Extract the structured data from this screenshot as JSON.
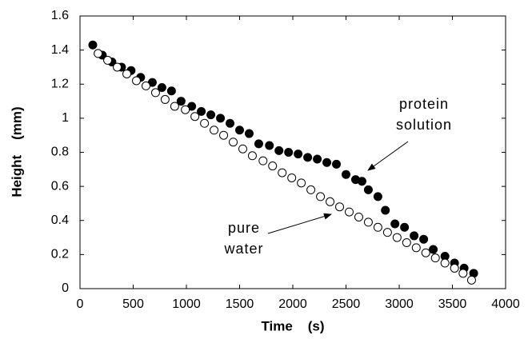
{
  "chart_data": {
    "type": "scatter",
    "xlabel": "Time    (s)",
    "ylabel": "Height    (mm)",
    "xlim": [
      0,
      4000
    ],
    "xticks": [
      0,
      500,
      1000,
      1500,
      2000,
      2500,
      3000,
      3500,
      4000
    ],
    "ylim": [
      0,
      1.6
    ],
    "yticks": [
      0,
      0.2,
      0.4,
      0.6,
      0.8,
      1,
      1.2,
      1.4,
      1.6
    ],
    "grid": false,
    "series": [
      {
        "name": "protein solution",
        "color": "#000000",
        "filled": true,
        "x": [
          120,
          210,
          300,
          390,
          480,
          570,
          680,
          770,
          860,
          950,
          1050,
          1140,
          1230,
          1320,
          1410,
          1500,
          1590,
          1680,
          1780,
          1870,
          1960,
          2050,
          2140,
          2230,
          2320,
          2410,
          2500,
          2590,
          2650,
          2710,
          2800,
          2870,
          2960,
          3050,
          3140,
          3230,
          3320,
          3430,
          3520,
          3610,
          3700
        ],
        "values": [
          1.43,
          1.37,
          1.33,
          1.3,
          1.28,
          1.24,
          1.21,
          1.18,
          1.16,
          1.1,
          1.07,
          1.04,
          1.02,
          1.0,
          0.97,
          0.93,
          0.91,
          0.85,
          0.84,
          0.81,
          0.8,
          0.79,
          0.77,
          0.76,
          0.74,
          0.73,
          0.67,
          0.64,
          0.63,
          0.58,
          0.54,
          0.46,
          0.38,
          0.36,
          0.31,
          0.29,
          0.23,
          0.19,
          0.15,
          0.12,
          0.09
        ]
      },
      {
        "name": "pure water",
        "color": "#000000",
        "filled": false,
        "x": [
          170,
          260,
          350,
          440,
          530,
          620,
          710,
          800,
          890,
          990,
          1080,
          1170,
          1260,
          1350,
          1440,
          1530,
          1620,
          1720,
          1810,
          1900,
          1990,
          2080,
          2170,
          2260,
          2350,
          2440,
          2530,
          2620,
          2710,
          2800,
          2890,
          2980,
          3070,
          3160,
          3250,
          3340,
          3430,
          3520,
          3600,
          3680
        ],
        "values": [
          1.38,
          1.34,
          1.3,
          1.26,
          1.22,
          1.19,
          1.15,
          1.11,
          1.07,
          1.05,
          1.01,
          0.97,
          0.93,
          0.9,
          0.86,
          0.82,
          0.78,
          0.75,
          0.72,
          0.68,
          0.65,
          0.62,
          0.58,
          0.54,
          0.51,
          0.48,
          0.45,
          0.42,
          0.39,
          0.36,
          0.33,
          0.3,
          0.27,
          0.24,
          0.21,
          0.18,
          0.15,
          0.12,
          0.09,
          0.05
        ]
      }
    ],
    "annotations": [
      {
        "lines": [
          "protein",
          "solution"
        ]
      },
      {
        "lines": [
          "pure",
          "water"
        ]
      }
    ]
  }
}
